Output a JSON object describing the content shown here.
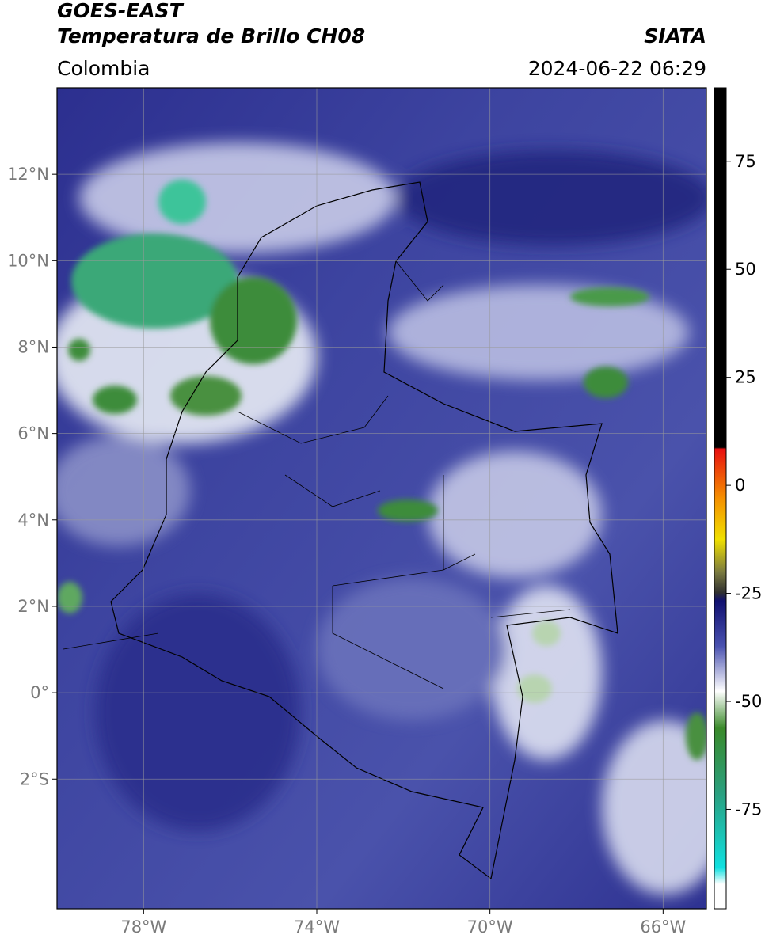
{
  "header": {
    "title": "GOES-EAST",
    "subtitle": "Temperatura de Brillo CH08",
    "agency": "SIATA",
    "region": "Colombia",
    "datetime": "2024-06-22 06:29"
  },
  "map": {
    "xlim": [
      -80,
      -65
    ],
    "ylim": [
      -5,
      14
    ],
    "xticks": [
      {
        "value": -78,
        "label": "78°W"
      },
      {
        "value": -74,
        "label": "74°W"
      },
      {
        "value": -70,
        "label": "70°W"
      },
      {
        "value": -66,
        "label": "66°W"
      }
    ],
    "yticks": [
      {
        "value": 12,
        "label": "12°N"
      },
      {
        "value": 10,
        "label": "10°N"
      },
      {
        "value": 8,
        "label": "8°N"
      },
      {
        "value": 6,
        "label": "6°N"
      },
      {
        "value": 4,
        "label": "4°N"
      },
      {
        "value": 2,
        "label": "2°N"
      },
      {
        "value": 0,
        "label": "0°"
      },
      {
        "value": -2,
        "label": "2°S"
      }
    ],
    "grid": true
  },
  "colorbar": {
    "lim": [
      -98,
      92
    ],
    "ticks": [
      75,
      50,
      25,
      0,
      -25,
      -50,
      -75
    ]
  }
}
